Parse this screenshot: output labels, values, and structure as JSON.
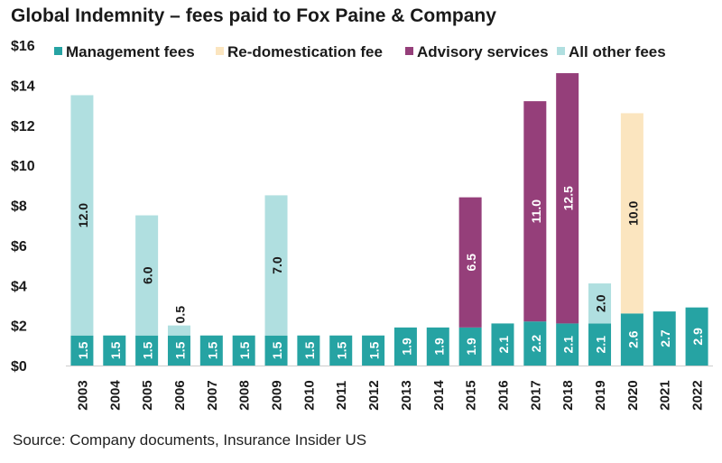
{
  "chart_data": {
    "type": "bar",
    "stacked": true,
    "title": "Global Indemnity – fees paid to Fox Paine & Company",
    "source": "Source: Company documents, Insurance Insider US",
    "xlabel": "",
    "ylabel": "",
    "ylim": [
      0,
      16
    ],
    "yticks": [
      "$0",
      "$2",
      "$4",
      "$6",
      "$8",
      "$10",
      "$12",
      "$14",
      "$16"
    ],
    "ytick_values": [
      0,
      2,
      4,
      6,
      8,
      10,
      12,
      14,
      16
    ],
    "categories": [
      "2003",
      "2004",
      "2005",
      "2006",
      "2007",
      "2008",
      "2009",
      "2010",
      "2011",
      "2012",
      "2013",
      "2014",
      "2015",
      "2016",
      "2017",
      "2018",
      "2019",
      "2020",
      "2021",
      "2022"
    ],
    "series": [
      {
        "name": "Management fees",
        "color": "#26a3a3",
        "label_color": "#ffffff",
        "values": [
          1.5,
          1.5,
          1.5,
          1.5,
          1.5,
          1.5,
          1.5,
          1.5,
          1.5,
          1.5,
          1.9,
          1.9,
          1.9,
          2.1,
          2.2,
          2.1,
          2.1,
          2.6,
          2.7,
          2.9
        ],
        "labels": [
          "1.5",
          "1.5",
          "1.5",
          "1.5",
          "1.5",
          "1.5",
          "1.5",
          "1.5",
          "1.5",
          "1.5",
          "1.9",
          "1.9",
          "1.9",
          "2.1",
          "2.2",
          "2.1",
          "2.1",
          "2.6",
          "2.7",
          "2.9"
        ]
      },
      {
        "name": "Re-domestication fee",
        "color": "#fbe5bf",
        "label_color": "#1a1a1a",
        "values": [
          0,
          0,
          0,
          0,
          0,
          0,
          0,
          0,
          0,
          0,
          0,
          0,
          0,
          0,
          0,
          0,
          0,
          10.0,
          0,
          0
        ],
        "labels": [
          "",
          "",
          "",
          "",
          "",
          "",
          "",
          "",
          "",
          "",
          "",
          "",
          "",
          "",
          "",
          "",
          "",
          "10.0",
          "",
          ""
        ]
      },
      {
        "name": "Advisory services",
        "color": "#953f7a",
        "label_color": "#ffffff",
        "values": [
          0,
          0,
          0,
          0,
          0,
          0,
          0,
          0,
          0,
          0,
          0,
          0,
          6.5,
          0,
          11.0,
          12.5,
          0,
          0,
          0,
          0
        ],
        "labels": [
          "",
          "",
          "",
          "",
          "",
          "",
          "",
          "",
          "",
          "",
          "",
          "",
          "6.5",
          "",
          "11.0",
          "12.5",
          "",
          "",
          "",
          ""
        ]
      },
      {
        "name": "All other fees",
        "color": "#b0dfe0",
        "label_color": "#1a1a1a",
        "values": [
          12.0,
          0,
          6.0,
          0.5,
          0,
          0,
          7.0,
          0,
          0,
          0,
          0,
          0,
          0,
          0,
          0,
          0,
          2.0,
          0,
          0,
          0
        ],
        "labels": [
          "12.0",
          "",
          "6.0",
          "0.5",
          "",
          "",
          "7.0",
          "",
          "",
          "",
          "",
          "",
          "",
          "",
          "",
          "",
          "2.0",
          "",
          "",
          ""
        ]
      }
    ],
    "legend": {
      "placement": "top"
    }
  }
}
